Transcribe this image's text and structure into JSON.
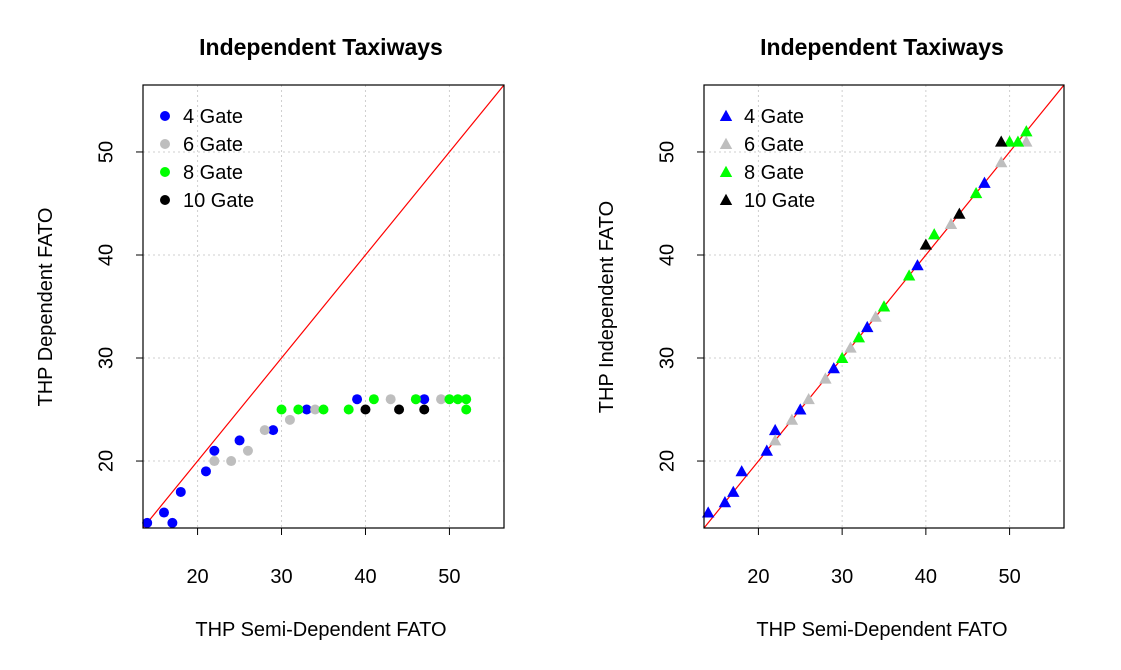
{
  "chart_data": [
    {
      "type": "scatter",
      "title": "Independent Taxiways",
      "xlabel": "THP Semi-Dependent FATO",
      "ylabel": "THP Dependent FATO",
      "xlim": [
        13.5,
        56.5
      ],
      "ylim": [
        13.5,
        56.5
      ],
      "xticks": [
        20,
        30,
        40,
        50
      ],
      "yticks": [
        20,
        30,
        40,
        50
      ],
      "grid": true,
      "legend_position": "top-left",
      "marker": "circle",
      "reference_line": {
        "slope": 1,
        "intercept": 0,
        "color": "#ff0000"
      },
      "series": [
        {
          "name": "4 Gate",
          "color": "#0000ff",
          "points": [
            [
              14,
              14
            ],
            [
              16,
              15
            ],
            [
              17,
              14
            ],
            [
              18,
              17
            ],
            [
              21,
              19
            ],
            [
              22,
              21
            ],
            [
              25,
              22
            ],
            [
              29,
              23
            ],
            [
              33,
              25
            ],
            [
              39,
              26
            ],
            [
              47,
              26
            ]
          ]
        },
        {
          "name": "6 Gate",
          "color": "#bebebe",
          "points": [
            [
              22,
              20
            ],
            [
              24,
              20
            ],
            [
              26,
              21
            ],
            [
              28,
              23
            ],
            [
              31,
              24
            ],
            [
              34,
              25
            ],
            [
              43,
              26
            ],
            [
              46,
              26
            ],
            [
              49,
              26
            ]
          ]
        },
        {
          "name": "8 Gate",
          "color": "#00ff00",
          "points": [
            [
              30,
              25
            ],
            [
              32,
              25
            ],
            [
              35,
              25
            ],
            [
              38,
              25
            ],
            [
              41,
              26
            ],
            [
              46,
              26
            ],
            [
              50,
              26
            ],
            [
              51,
              26
            ],
            [
              52,
              26
            ],
            [
              52,
              25
            ]
          ]
        },
        {
          "name": "10 Gate",
          "color": "#000000",
          "points": [
            [
              40,
              25
            ],
            [
              44,
              25
            ],
            [
              47,
              25
            ]
          ]
        }
      ]
    },
    {
      "type": "scatter",
      "title": "Independent Taxiways",
      "xlabel": "THP Semi-Dependent FATO",
      "ylabel": "THP Independent FATO",
      "xlim": [
        13.5,
        56.5
      ],
      "ylim": [
        13.5,
        56.5
      ],
      "xticks": [
        20,
        30,
        40,
        50
      ],
      "yticks": [
        20,
        30,
        40,
        50
      ],
      "grid": true,
      "legend_position": "top-left",
      "marker": "triangle",
      "reference_line": {
        "slope": 1,
        "intercept": 0,
        "color": "#ff0000"
      },
      "series": [
        {
          "name": "4 Gate",
          "color": "#0000ff",
          "points": [
            [
              14,
              15
            ],
            [
              16,
              16
            ],
            [
              17,
              17
            ],
            [
              18,
              19
            ],
            [
              21,
              21
            ],
            [
              22,
              23
            ],
            [
              25,
              25
            ],
            [
              29,
              29
            ],
            [
              33,
              33
            ],
            [
              39,
              39
            ],
            [
              47,
              47
            ]
          ]
        },
        {
          "name": "6 Gate",
          "color": "#bebebe",
          "points": [
            [
              22,
              22
            ],
            [
              24,
              24
            ],
            [
              26,
              26
            ],
            [
              28,
              28
            ],
            [
              31,
              31
            ],
            [
              34,
              34
            ],
            [
              43,
              43
            ],
            [
              49,
              49
            ],
            [
              52,
              51
            ]
          ]
        },
        {
          "name": "8 Gate",
          "color": "#00ff00",
          "points": [
            [
              30,
              30
            ],
            [
              32,
              32
            ],
            [
              35,
              35
            ],
            [
              38,
              38
            ],
            [
              41,
              42
            ],
            [
              46,
              46
            ],
            [
              50,
              51
            ],
            [
              51,
              51
            ],
            [
              52,
              52
            ]
          ]
        },
        {
          "name": "10 Gate",
          "color": "#000000",
          "points": [
            [
              40,
              41
            ],
            [
              44,
              44
            ],
            [
              49,
              51
            ]
          ]
        }
      ]
    }
  ]
}
